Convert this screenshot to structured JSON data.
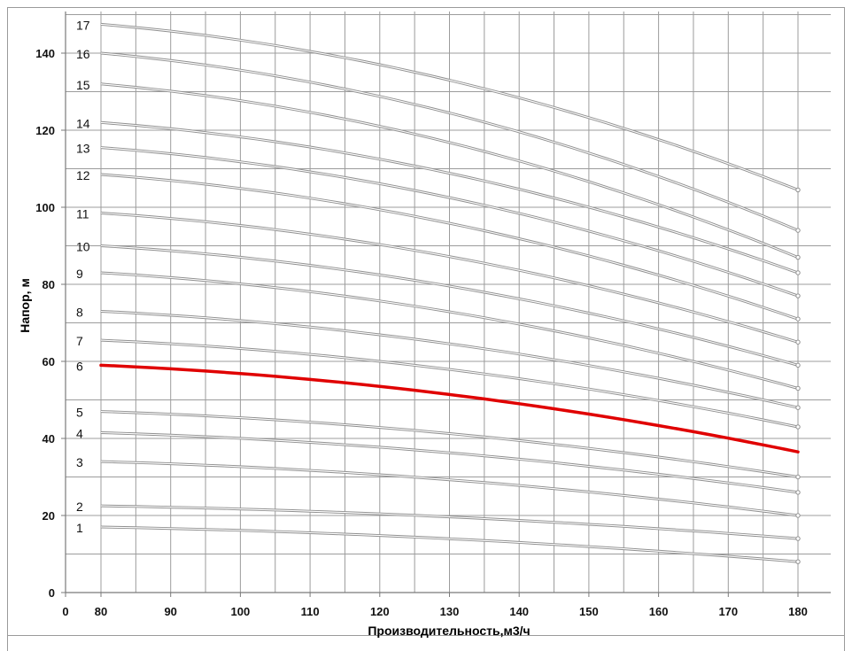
{
  "chart_data": {
    "type": "line",
    "title": "",
    "xlabel": "Производительность,м3/ч",
    "ylabel": "Напор, м",
    "xlim": [
      0,
      180
    ],
    "ylim": [
      0,
      140
    ],
    "x_ticks": [
      0,
      80,
      90,
      100,
      110,
      120,
      130,
      140,
      150,
      160,
      170,
      180
    ],
    "y_ticks": [
      0,
      20,
      40,
      60,
      80,
      100,
      120,
      140
    ],
    "grid": true,
    "legend": "none",
    "highlight_color": "#e00000",
    "line_color": "#909090",
    "x": [
      80,
      180
    ],
    "series": [
      {
        "name": "1",
        "values": [
          17,
          8
        ]
      },
      {
        "name": "2",
        "values": [
          22.5,
          14
        ]
      },
      {
        "name": "3",
        "values": [
          34,
          20
        ]
      },
      {
        "name": "4",
        "values": [
          41.5,
          26
        ]
      },
      {
        "name": "5",
        "values": [
          47,
          30
        ]
      },
      {
        "name": "6",
        "values": [
          59,
          36.5
        ],
        "highlight": true
      },
      {
        "name": "7",
        "values": [
          65.5,
          43
        ]
      },
      {
        "name": "8",
        "values": [
          73,
          48
        ]
      },
      {
        "name": "9",
        "values": [
          83,
          53
        ]
      },
      {
        "name": "10",
        "values": [
          90,
          59
        ]
      },
      {
        "name": "11",
        "values": [
          98.5,
          65
        ]
      },
      {
        "name": "12",
        "values": [
          108.5,
          71
        ]
      },
      {
        "name": "13",
        "values": [
          115.5,
          77
        ]
      },
      {
        "name": "14",
        "values": [
          122,
          83
        ]
      },
      {
        "name": "15",
        "values": [
          132,
          87
        ]
      },
      {
        "name": "16",
        "values": [
          140,
          94
        ]
      },
      {
        "name": "17",
        "values": [
          147.5,
          104.5
        ]
      }
    ]
  }
}
